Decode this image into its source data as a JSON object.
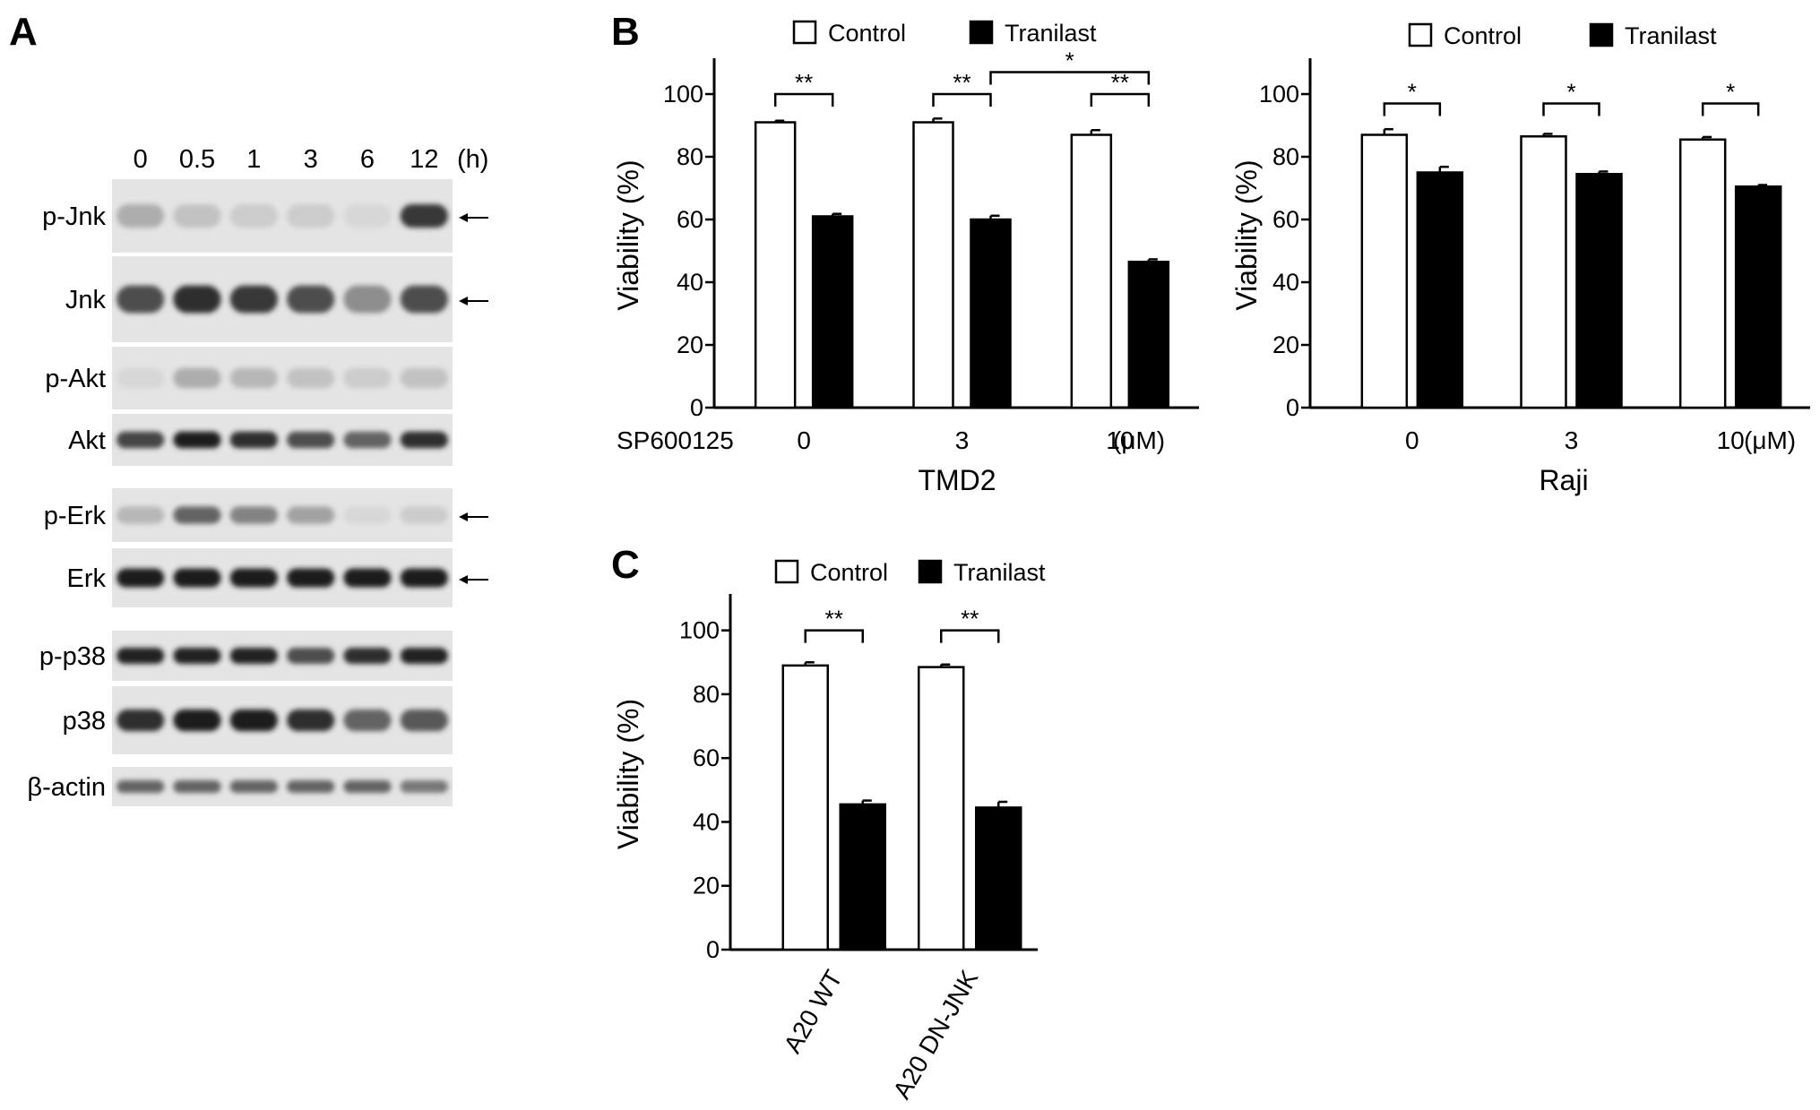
{
  "panels": {
    "a": "A",
    "b": "B",
    "c": "C"
  },
  "blot": {
    "lanes": [
      "0",
      "0.5",
      "1",
      "3",
      "6",
      "12"
    ],
    "unit": "(h)",
    "rows": [
      {
        "label": "p-Jnk",
        "arrow": true,
        "band_intensity": [
          0.25,
          0.15,
          0.1,
          0.1,
          0.05,
          0.8
        ]
      },
      {
        "label": "Jnk",
        "arrow": true,
        "band_intensity": [
          0.7,
          0.85,
          0.8,
          0.7,
          0.4,
          0.7
        ]
      },
      {
        "label": "p-Akt",
        "arrow": false,
        "band_intensity": [
          0.05,
          0.25,
          0.2,
          0.15,
          0.1,
          0.15
        ]
      },
      {
        "label": "Akt",
        "arrow": false,
        "band_intensity": [
          0.75,
          0.95,
          0.85,
          0.7,
          0.6,
          0.85
        ]
      },
      {
        "label": "p-Erk",
        "arrow": true,
        "band_intensity": [
          0.2,
          0.6,
          0.45,
          0.3,
          0.05,
          0.1
        ]
      },
      {
        "label": "Erk",
        "arrow": true,
        "band_intensity": [
          0.95,
          0.95,
          0.95,
          0.95,
          0.95,
          0.95
        ]
      },
      {
        "label": "p-p38",
        "arrow": false,
        "band_intensity": [
          0.9,
          0.9,
          0.9,
          0.7,
          0.85,
          0.9
        ]
      },
      {
        "label": "p38",
        "arrow": false,
        "band_intensity": [
          0.85,
          0.95,
          0.95,
          0.85,
          0.6,
          0.65
        ]
      },
      {
        "label": "β-actin",
        "arrow": false,
        "band_intensity": [
          0.6,
          0.6,
          0.6,
          0.6,
          0.6,
          0.5
        ]
      }
    ]
  },
  "legend": {
    "control": "Control",
    "tranilast": "Tranilast"
  },
  "colors": {
    "control_fill": "#ffffff",
    "tranilast_fill": "#000000"
  },
  "chart_data": [
    {
      "type": "bar",
      "panel": "B",
      "ylabel": "Viability (%)",
      "xlabel": "TMD2",
      "x_prefix": "SP600125",
      "x_unit": "(μM)",
      "categories": [
        "0",
        "3",
        "10"
      ],
      "ylim": [
        0,
        110
      ],
      "yticks": [
        0,
        20,
        40,
        60,
        80,
        100
      ],
      "series": [
        {
          "name": "Control",
          "values": [
            91,
            91,
            87
          ],
          "errors": [
            0.5,
            1.2,
            1.5
          ]
        },
        {
          "name": "Tranilast",
          "values": [
            61,
            60,
            46.5
          ],
          "errors": [
            0.8,
            1.2,
            0.8
          ]
        }
      ],
      "significance": [
        {
          "from": {
            "cat": 0,
            "bar": 0
          },
          "to": {
            "cat": 0,
            "bar": 1
          },
          "label": "**",
          "level": 100
        },
        {
          "from": {
            "cat": 1,
            "bar": 0
          },
          "to": {
            "cat": 1,
            "bar": 1
          },
          "label": "**",
          "level": 100
        },
        {
          "from": {
            "cat": 2,
            "bar": 0
          },
          "to": {
            "cat": 2,
            "bar": 1
          },
          "label": "**",
          "level": 100
        },
        {
          "from": {
            "cat": 1,
            "bar": 1
          },
          "to": {
            "cat": 2,
            "bar": 1
          },
          "label": "*",
          "level": 107
        }
      ],
      "grid": false,
      "legend": "top"
    },
    {
      "type": "bar",
      "panel": "B-right",
      "ylabel": "Viability (%)",
      "xlabel": "Raji",
      "x_unit": "(μM)",
      "categories": [
        "0",
        "3",
        "10"
      ],
      "ylim": [
        0,
        110
      ],
      "yticks": [
        0,
        20,
        40,
        60,
        80,
        100
      ],
      "series": [
        {
          "name": "Control",
          "values": [
            87,
            86.5,
            85.5
          ],
          "errors": [
            1.8,
            0.8,
            0.8
          ]
        },
        {
          "name": "Tranilast",
          "values": [
            75,
            74.5,
            70.5
          ],
          "errors": [
            1.8,
            0.8,
            0.5
          ]
        }
      ],
      "significance": [
        {
          "from": {
            "cat": 0,
            "bar": 0
          },
          "to": {
            "cat": 0,
            "bar": 1
          },
          "label": "*",
          "level": 97
        },
        {
          "from": {
            "cat": 1,
            "bar": 0
          },
          "to": {
            "cat": 1,
            "bar": 1
          },
          "label": "*",
          "level": 97
        },
        {
          "from": {
            "cat": 2,
            "bar": 0
          },
          "to": {
            "cat": 2,
            "bar": 1
          },
          "label": "*",
          "level": 97
        }
      ],
      "grid": false,
      "legend": "top"
    },
    {
      "type": "bar",
      "panel": "C",
      "ylabel": "Viability (%)",
      "xlabel": "",
      "categories": [
        "A20 WT",
        "A20 DN-JNK"
      ],
      "ylim": [
        0,
        110
      ],
      "yticks": [
        0,
        20,
        40,
        60,
        80,
        100
      ],
      "series": [
        {
          "name": "Control",
          "values": [
            89,
            88.5
          ],
          "errors": [
            1.0,
            0.8
          ]
        },
        {
          "name": "Tranilast",
          "values": [
            45.5,
            44.5
          ],
          "errors": [
            1.2,
            1.8
          ]
        }
      ],
      "significance": [
        {
          "from": {
            "cat": 0,
            "bar": 0
          },
          "to": {
            "cat": 0,
            "bar": 1
          },
          "label": "**",
          "level": 100
        },
        {
          "from": {
            "cat": 1,
            "bar": 0
          },
          "to": {
            "cat": 1,
            "bar": 1
          },
          "label": "**",
          "level": 100
        }
      ],
      "grid": false,
      "legend": "top"
    }
  ]
}
